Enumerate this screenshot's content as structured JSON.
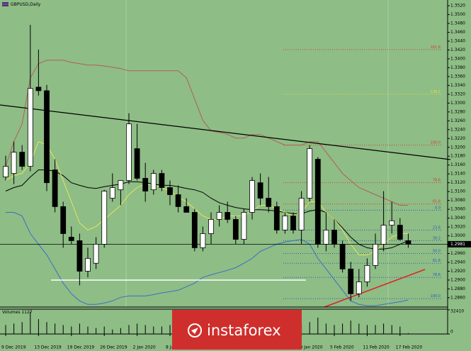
{
  "chart_data": {
    "type": "candlestick",
    "title": "GBPUSD,Daily",
    "categories": [
      "9 Dec 2019",
      null,
      null,
      null,
      "13 Dec 2019",
      null,
      null,
      null,
      "19 Dec 2019",
      null,
      null,
      null,
      "26 Dec 2019",
      null,
      null,
      null,
      "2 Jan 2020",
      null,
      null,
      null,
      "8 Jan 2020",
      null,
      null,
      null,
      null,
      null,
      null,
      null,
      null,
      null,
      null,
      null,
      null,
      null,
      null,
      null,
      "30 Jan 2020",
      null,
      null,
      null,
      "5 Feb 2020",
      null,
      null,
      null,
      "11 Feb 2020",
      null,
      null,
      null,
      "17 Feb 2020",
      null
    ],
    "open": [
      1.3133,
      1.3141,
      1.3189,
      1.3157,
      1.3336,
      1.3328,
      1.3149,
      1.3066,
      1.2997,
      1.2989,
      1.292,
      1.2938,
      1.2981,
      1.3085,
      1.3104,
      1.3125,
      1.3197,
      1.313,
      1.3104,
      1.3141,
      1.3109,
      1.3093,
      1.3066,
      1.3053,
      1.2973,
      1.3005,
      1.3037,
      1.3053,
      1.3037,
      1.2992,
      1.3053,
      1.312,
      1.3085,
      1.3066,
      1.3013,
      1.3045,
      1.3013,
      1.3085,
      1.3173,
      1.2981,
      1.3013,
      1.2981,
      1.2925,
      1.2869,
      1.2896,
      1.2933,
      1.2981,
      1.3024,
      1.3024,
      1.2989
    ],
    "high": [
      1.3181,
      1.3213,
      1.3205,
      1.3477,
      1.3421,
      1.3341,
      1.3173,
      1.3077,
      1.3021,
      1.3005,
      1.2973,
      1.2997,
      1.3104,
      1.3141,
      1.3125,
      1.3277,
      1.3253,
      1.3165,
      1.3149,
      1.3149,
      1.3125,
      1.3114,
      1.3085,
      1.3061,
      1.3021,
      1.3053,
      1.3069,
      1.3077,
      1.3045,
      1.3061,
      1.3133,
      1.3141,
      1.3133,
      1.3077,
      1.3053,
      1.3053,
      1.3101,
      1.3205,
      1.3178,
      1.3053,
      1.3037,
      1.2989,
      1.2941,
      1.2925,
      1.2949,
      1.3005,
      1.3101,
      1.3077,
      1.304,
      1.3005
    ],
    "low": [
      1.3125,
      1.3117,
      1.3149,
      1.3146,
      1.3317,
      1.3101,
      1.3053,
      1.2973,
      1.2981,
      1.2888,
      1.2906,
      1.2925,
      1.2973,
      1.3077,
      1.3069,
      1.3117,
      1.3125,
      1.3077,
      1.3093,
      1.3101,
      1.3069,
      1.3053,
      1.3053,
      1.2965,
      1.2965,
      1.2981,
      1.3021,
      1.3029,
      1.2981,
      1.2981,
      1.3037,
      1.3069,
      1.3053,
      1.3005,
      1.3005,
      1.3005,
      1.2981,
      1.3077,
      1.2973,
      1.2965,
      1.2973,
      1.2917,
      1.2853,
      1.2861,
      1.2885,
      1.2925,
      1.2965,
      1.3005,
      1.2989,
      1.2973
    ],
    "close": [
      1.3157,
      1.3189,
      1.3157,
      1.3333,
      1.3328,
      1.312,
      1.3066,
      1.3005,
      1.2989,
      1.292,
      1.2949,
      1.2981,
      1.3101,
      1.3109,
      1.3125,
      1.3253,
      1.313,
      1.3101,
      1.3141,
      1.3109,
      1.3093,
      1.3066,
      1.3053,
      1.2973,
      1.3005,
      1.3037,
      1.3053,
      1.3037,
      1.2992,
      1.3053,
      1.3125,
      1.3085,
      1.3066,
      1.3013,
      1.3045,
      1.3013,
      1.3085,
      1.3197,
      1.2981,
      1.3013,
      1.2981,
      1.2925,
      1.2869,
      1.2896,
      1.2933,
      1.2981,
      1.3024,
      1.3034,
      1.2992,
      1.2981
    ],
    "bull_color": "#ffffff",
    "bear_color": "#000000",
    "overlays": [
      {
        "color": "#b0605a",
        "values": [
          1.3157,
          1.3213,
          1.3253,
          1.3357,
          1.3389,
          1.3397,
          1.3397,
          1.3397,
          1.3392,
          1.3389,
          1.3386,
          1.3386,
          1.3384,
          1.3381,
          1.3378,
          1.3373,
          1.3373,
          1.3373,
          1.3373,
          1.3373,
          1.3373,
          1.3373,
          1.3357,
          1.3309,
          1.3261,
          1.3237,
          1.3234,
          1.3229,
          1.3221,
          1.3221,
          1.3229,
          1.3229,
          1.3221,
          1.3213,
          1.3205,
          1.3205,
          1.3205,
          1.3213,
          1.3213,
          1.3189,
          1.3165,
          1.3141,
          1.3125,
          1.3109,
          1.3101,
          1.3093,
          1.3085,
          1.3077,
          1.3069,
          1.3069
        ]
      },
      {
        "color": "#3a6fc4",
        "values": [
          1.3053,
          1.3053,
          1.3045,
          1.3005,
          1.2981,
          1.2957,
          1.2925,
          1.2893,
          1.2869,
          1.2853,
          1.2845,
          1.2845,
          1.2848,
          1.2853,
          1.2861,
          1.2864,
          1.2864,
          1.2864,
          1.2867,
          1.2871,
          1.2874,
          1.2877,
          1.2885,
          1.2893,
          1.2906,
          1.2912,
          1.2917,
          1.2922,
          1.2928,
          1.2938,
          1.2949,
          1.2965,
          1.2973,
          1.2981,
          1.2986,
          1.2989,
          1.2992,
          1.2981,
          1.2949,
          1.2925,
          1.2901,
          1.2877,
          1.2853,
          1.2845,
          1.2842,
          1.2842,
          1.2845,
          1.2848,
          1.2851,
          1.2855
        ]
      },
      {
        "color": "#000000",
        "values": [
          1.3101,
          1.3109,
          1.3114,
          1.3133,
          1.3149,
          1.3149,
          1.3146,
          1.3136,
          1.312,
          1.3114,
          1.3109,
          1.3107,
          1.3111,
          1.3114,
          1.3117,
          1.3122,
          1.3122,
          1.312,
          1.3117,
          1.3114,
          1.3114,
          1.3111,
          1.3107,
          1.3104,
          1.3098,
          1.3085,
          1.3075,
          1.3069,
          1.3064,
          1.3061,
          1.3059,
          1.3059,
          1.3058,
          1.3056,
          1.3053,
          1.305,
          1.305,
          1.3056,
          1.3059,
          1.3053,
          1.3037,
          1.3018,
          1.2997,
          1.2981,
          1.2973,
          1.297,
          1.297,
          1.2973,
          1.2981,
          1.2989
        ]
      },
      {
        "color": "#e6e65a",
        "values": [
          1.3125,
          1.3136,
          1.3141,
          1.3165,
          1.3213,
          1.3205,
          1.3173,
          1.3125,
          1.3077,
          1.3029,
          1.3013,
          1.3021,
          1.3037,
          1.3053,
          1.3069,
          1.3093,
          1.3109,
          1.3117,
          1.3114,
          1.3109,
          1.3101,
          1.3088,
          1.3077,
          1.3061,
          1.3045,
          1.3037,
          1.3037,
          1.3045,
          1.3045,
          1.3045,
          1.3056,
          1.3069,
          1.3069,
          1.3061,
          1.3053,
          1.3045,
          1.3053,
          1.3077,
          1.3077,
          1.3053,
          1.3037,
          1.3013,
          1.2981,
          1.2957,
          1.2957,
          1.2965,
          1.2981,
          1.2997,
          1.3005,
          1.3005
        ]
      }
    ],
    "levels": [
      {
        "label": "161.8",
        "price": 1.3421,
        "color": "#d04030"
      },
      {
        "label": "138.2",
        "price": 1.332,
        "color": "#e0e040"
      },
      {
        "label": "100.0",
        "price": 1.3205,
        "color": "#d04030"
      },
      {
        "label": "78.6",
        "price": 1.312,
        "color": "#d04030"
      },
      {
        "label": "61.8",
        "price": 1.3072,
        "color": "#d04030"
      },
      {
        "label": "0.0",
        "price": 1.3058,
        "color": "#2a5db0"
      },
      {
        "label": "23.6",
        "price": 1.3013,
        "color": "#2a5db0"
      },
      {
        "label": "38.2",
        "price": 1.2989,
        "color": "#2a5db0"
      },
      {
        "label": "50.0",
        "price": 1.296,
        "color": "#2a5db0"
      },
      {
        "label": "61.8",
        "price": 1.2938,
        "color": "#2a5db0"
      },
      {
        "label": "78.6",
        "price": 1.2906,
        "color": "#2a5db0"
      },
      {
        "label": "100.0",
        "price": 1.2858,
        "color": "#2a5db0"
      }
    ],
    "last_price": 1.2981,
    "ylim": [
      1.2839,
      1.3533
    ],
    "yticks": [
      {
        "value": 1.286,
        "label": "1.2860"
      },
      {
        "value": 1.288,
        "label": "1.2880"
      },
      {
        "value": 1.29,
        "label": "1.2900"
      },
      {
        "value": 1.292,
        "label": "1.2920"
      },
      {
        "value": 1.294,
        "label": "1.2940"
      },
      {
        "value": 1.296,
        "label": "1.2960"
      },
      {
        "value": 1.298,
        "label": "1.2980"
      },
      {
        "value": 1.3,
        "label": "1.3000"
      },
      {
        "value": 1.302,
        "label": "1.3020"
      },
      {
        "value": 1.304,
        "label": "1.3040"
      },
      {
        "value": 1.306,
        "label": "1.3060"
      },
      {
        "value": 1.308,
        "label": "1.3080"
      },
      {
        "value": 1.31,
        "label": "1.3100"
      },
      {
        "value": 1.312,
        "label": "1.3120"
      },
      {
        "value": 1.314,
        "label": "1.3140"
      },
      {
        "value": 1.316,
        "label": "1.3160"
      },
      {
        "value": 1.318,
        "label": "1.3180"
      },
      {
        "value": 1.32,
        "label": "1.3200"
      },
      {
        "value": 1.322,
        "label": "1.3220"
      },
      {
        "value": 1.324,
        "label": "1.3240"
      },
      {
        "value": 1.326,
        "label": "1.3260"
      },
      {
        "value": 1.328,
        "label": "1.3280"
      },
      {
        "value": 1.33,
        "label": "1.3300"
      },
      {
        "value": 1.332,
        "label": "1.3320"
      },
      {
        "value": 1.334,
        "label": "1.3340"
      },
      {
        "value": 1.336,
        "label": "1.3360"
      },
      {
        "value": 1.338,
        "label": "1.3380"
      },
      {
        "value": 1.34,
        "label": "1.3400"
      },
      {
        "value": 1.342,
        "label": "1.3420"
      },
      {
        "value": 1.344,
        "label": "1.3440"
      },
      {
        "value": 1.346,
        "label": "1.3460"
      },
      {
        "value": 1.348,
        "label": "1.3480"
      },
      {
        "value": 1.35,
        "label": "1.3500"
      },
      {
        "value": 1.352,
        "label": "1.3520"
      }
    ],
    "volume": {
      "title": "Volumes 1127",
      "color": "#000000",
      "values": [
        12000,
        14000,
        16000,
        30000,
        20000,
        16000,
        14000,
        12000,
        10000,
        14000,
        10000,
        8000,
        10000,
        6000,
        8000,
        12000,
        14000,
        12000,
        10000,
        10000,
        12000,
        12000,
        10000,
        14000,
        10000,
        10000,
        8000,
        8000,
        10000,
        10000,
        12000,
        10000,
        10000,
        8000,
        10000,
        10000,
        14000,
        16000,
        22000,
        14000,
        12000,
        14000,
        18000,
        14000,
        12000,
        12000,
        14000,
        12000,
        10000,
        1127
      ],
      "ylim": [
        0,
        32410
      ],
      "yticks": [
        0,
        32410
      ]
    },
    "watermark": "instaforex"
  }
}
